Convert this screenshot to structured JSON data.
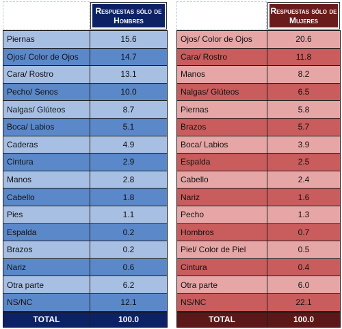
{
  "tables": [
    {
      "header": "Respuestas sólo de Hombres",
      "rows": [
        [
          "Piernas",
          "15.6"
        ],
        [
          "Ojos/ Color de Ojos",
          "14.7"
        ],
        [
          "Cara/ Rostro",
          "13.1"
        ],
        [
          "Pecho/ Senos",
          "10.0"
        ],
        [
          "Nalgas/ Glúteos",
          "8.7"
        ],
        [
          "Boca/ Labios",
          "5.1"
        ],
        [
          "Caderas",
          "4.9"
        ],
        [
          "Cintura",
          "2.9"
        ],
        [
          "Manos",
          "2.8"
        ],
        [
          "Cabello",
          "1.8"
        ],
        [
          "Pies",
          "1.1"
        ],
        [
          "Espalda",
          "0.2"
        ],
        [
          "Brazos",
          "0.2"
        ],
        [
          "Nariz",
          "0.6"
        ],
        [
          "Otra parte",
          "6.2"
        ],
        [
          "NS/NC",
          "12.1"
        ]
      ],
      "total": [
        "TOTAL",
        "100.0"
      ]
    },
    {
      "header": "Respuestas sólo de Mujeres",
      "rows": [
        [
          "Ojos/ Color de Ojos",
          "20.6"
        ],
        [
          "Cara/ Rostro",
          "11.8"
        ],
        [
          "Manos",
          "8.2"
        ],
        [
          "Nalgas/ Glúteos",
          "6.5"
        ],
        [
          "Piernas",
          "5.8"
        ],
        [
          "Brazos",
          "5.7"
        ],
        [
          "Boca/ Labios",
          "3.9"
        ],
        [
          "Espalda",
          "2.5"
        ],
        [
          "Cabello",
          "2.4"
        ],
        [
          "Nariz",
          "1.6"
        ],
        [
          "Pecho",
          "1.3"
        ],
        [
          "Hombros",
          "0.7"
        ],
        [
          "Piel/ Color de Piel",
          "0.5"
        ],
        [
          "Cintura",
          "0.4"
        ],
        [
          "Otra parte",
          "6.0"
        ],
        [
          "NS/NC",
          "22.1"
        ]
      ],
      "total": [
        "TOTAL",
        "100.0"
      ]
    }
  ]
}
